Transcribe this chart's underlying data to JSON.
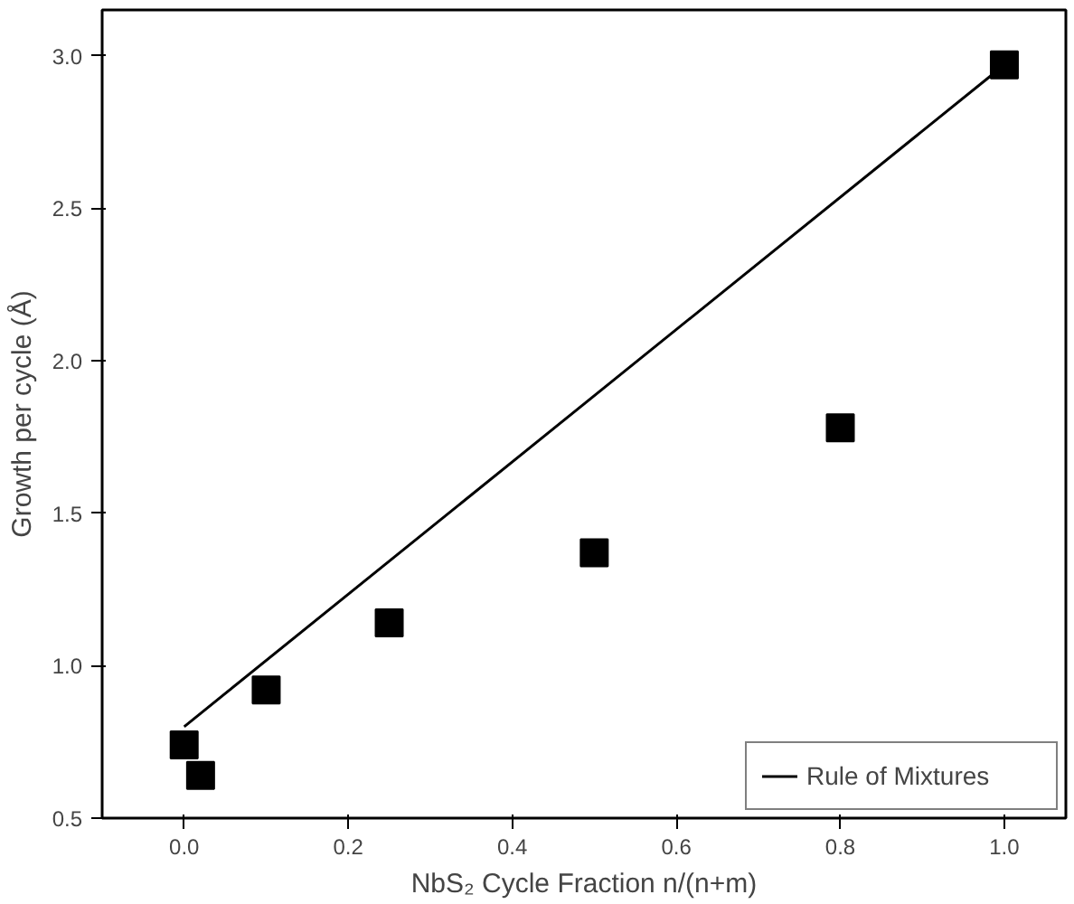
{
  "chart_data": {
    "type": "scatter",
    "xlabel": "NbS₂ Cycle Fraction n/(n+m)",
    "ylabel": "Growth per cycle (Å)",
    "xlim": [
      -0.1,
      1.075
    ],
    "ylim": [
      0.5,
      3.15
    ],
    "xticks": [
      {
        "value": 0,
        "label": "0.0"
      },
      {
        "value": 0.2,
        "label": "0.2"
      },
      {
        "value": 0.4,
        "label": "0.4"
      },
      {
        "value": 0.6,
        "label": "0.6"
      },
      {
        "value": 0.8,
        "label": "0.8"
      },
      {
        "value": 1,
        "label": "1.0"
      }
    ],
    "yticks": [
      {
        "value": 0.5,
        "label": "0.5"
      },
      {
        "value": 1,
        "label": "1.0"
      },
      {
        "value": 1.5,
        "label": "1.5"
      },
      {
        "value": 2,
        "label": "2.0"
      },
      {
        "value": 2.5,
        "label": "2.5"
      },
      {
        "value": 3,
        "label": "3.0"
      }
    ],
    "grid": false,
    "legend": "bottom right",
    "series": [
      {
        "marker": "square",
        "color": "#000000",
        "x": [
          0,
          0.02,
          0.1,
          0.25,
          0.5,
          0.8,
          1.0
        ],
        "values": [
          0.74,
          0.64,
          0.92,
          1.14,
          1.37,
          1.78,
          2.97
        ]
      },
      {
        "type": "line",
        "marker": "none",
        "name": "Rule of Mixtures",
        "color": "#000000",
        "x": [
          0,
          1.0
        ],
        "values": [
          0.8,
          2.97
        ]
      }
    ]
  }
}
